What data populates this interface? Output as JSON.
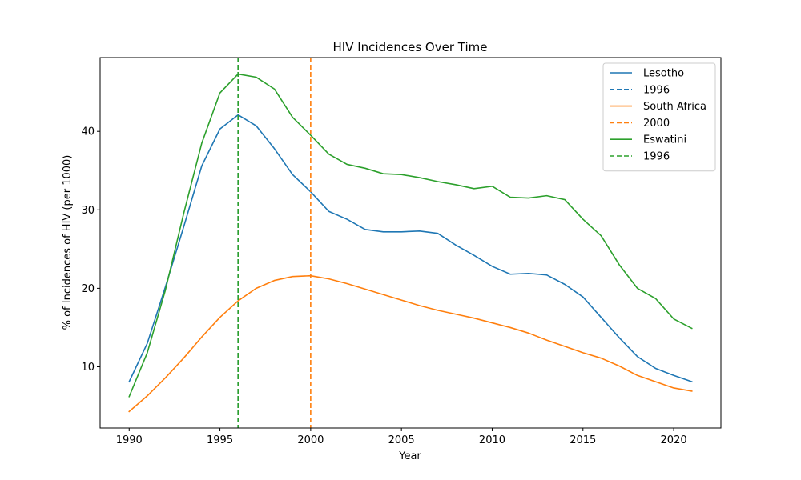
{
  "chart_data": {
    "type": "line",
    "title": "HIV Incidences Over Time",
    "xlabel": "Year",
    "ylabel": "% of Incidences of HIV (per 1000)",
    "xlim": [
      1988.4,
      2022.6
    ],
    "ylim": [
      2.2,
      49.4
    ],
    "x_ticks": [
      1990,
      1995,
      2000,
      2005,
      2010,
      2015,
      2020
    ],
    "y_ticks": [
      10,
      20,
      30,
      40
    ],
    "grid": false,
    "legend_position": "top-right",
    "x": [
      1990,
      1991,
      1992,
      1993,
      1994,
      1995,
      1996,
      1997,
      1998,
      1999,
      2000,
      2001,
      2002,
      2003,
      2004,
      2005,
      2006,
      2007,
      2008,
      2009,
      2010,
      2011,
      2012,
      2013,
      2014,
      2015,
      2016,
      2017,
      2018,
      2019,
      2020,
      2021
    ],
    "series": [
      {
        "name": "Lesotho",
        "color": "#1f77b4",
        "values": [
          8.1,
          13.0,
          20.2,
          27.8,
          35.6,
          40.3,
          42.1,
          40.7,
          37.8,
          34.5,
          32.3,
          29.8,
          28.8,
          27.5,
          27.2,
          27.2,
          27.3,
          27.0,
          25.5,
          24.2,
          22.8,
          21.8,
          21.9,
          21.7,
          20.5,
          18.9,
          16.3,
          13.7,
          11.3,
          9.8,
          8.9,
          8.1
        ]
      },
      {
        "name": "South Africa",
        "color": "#ff7f0e",
        "values": [
          4.3,
          6.3,
          8.6,
          11.1,
          13.8,
          16.3,
          18.4,
          20.0,
          21.0,
          21.5,
          21.6,
          21.2,
          20.6,
          19.9,
          19.2,
          18.5,
          17.8,
          17.2,
          16.7,
          16.2,
          15.6,
          15.0,
          14.3,
          13.4,
          12.6,
          11.8,
          11.1,
          10.1,
          8.9,
          8.1,
          7.3,
          6.9
        ]
      },
      {
        "name": "Eswatini",
        "color": "#2ca02c",
        "values": [
          6.2,
          11.8,
          19.8,
          29.5,
          38.5,
          44.9,
          47.3,
          46.9,
          45.4,
          41.8,
          39.5,
          37.1,
          35.8,
          35.3,
          34.6,
          34.5,
          34.1,
          33.6,
          33.2,
          32.7,
          33.0,
          31.6,
          31.5,
          31.8,
          31.3,
          28.8,
          26.7,
          23.0,
          20.0,
          18.7,
          16.1,
          14.9
        ]
      }
    ],
    "vlines": [
      {
        "name": "1996",
        "x": 1996,
        "color": "#1f77b4"
      },
      {
        "name": "2000",
        "x": 2000,
        "color": "#ff7f0e"
      },
      {
        "name": "1996",
        "x": 1996,
        "color": "#2ca02c"
      }
    ],
    "legend": [
      {
        "label": "Lesotho",
        "color": "#1f77b4",
        "style": "solid"
      },
      {
        "label": "1996",
        "color": "#1f77b4",
        "style": "dashed"
      },
      {
        "label": "South Africa",
        "color": "#ff7f0e",
        "style": "solid"
      },
      {
        "label": "2000",
        "color": "#ff7f0e",
        "style": "dashed"
      },
      {
        "label": "Eswatini",
        "color": "#2ca02c",
        "style": "solid"
      },
      {
        "label": "1996",
        "color": "#2ca02c",
        "style": "dashed"
      }
    ]
  }
}
